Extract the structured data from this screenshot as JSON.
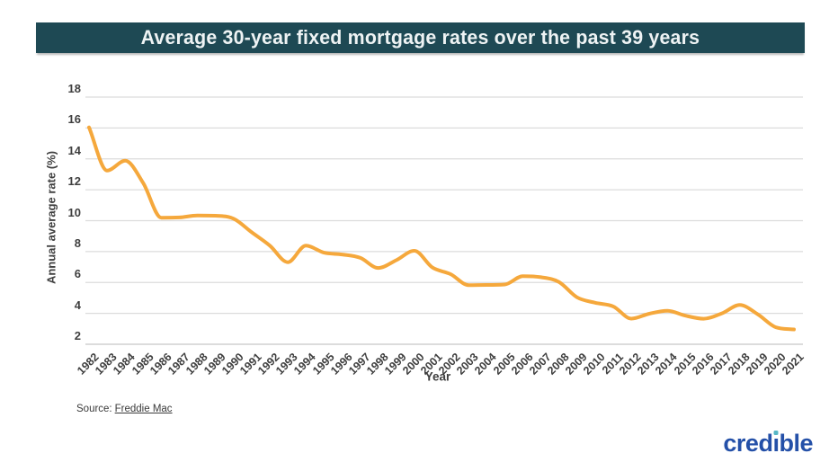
{
  "header": {
    "title": "Average 30-year fixed mortgage rates over the past 39 years",
    "bg_color": "#1e4954"
  },
  "chart_data": {
    "type": "line",
    "title": "Average 30-year fixed mortgage rates over the past 39 years",
    "xlabel": "Year",
    "ylabel": "Annual average rate (%)",
    "categories": [
      "1982",
      "1983",
      "1984",
      "1985",
      "1986",
      "1987",
      "1988",
      "1989",
      "1990",
      "1991",
      "1992",
      "1993",
      "1994",
      "1995",
      "1996",
      "1997",
      "1998",
      "1999",
      "2000",
      "2001",
      "2002",
      "2003",
      "2004",
      "2005",
      "2006",
      "2007",
      "2008",
      "2009",
      "2010",
      "2011",
      "2012",
      "2013",
      "2014",
      "2015",
      "2016",
      "2017",
      "2018",
      "2019",
      "2020",
      "2021"
    ],
    "values": [
      16.04,
      13.24,
      13.88,
      12.43,
      10.19,
      10.21,
      10.34,
      10.32,
      10.13,
      9.25,
      8.39,
      7.31,
      8.38,
      7.93,
      7.81,
      7.6,
      6.94,
      7.44,
      8.05,
      6.97,
      6.54,
      5.83,
      5.84,
      5.87,
      6.41,
      6.34,
      6.03,
      5.04,
      4.69,
      4.45,
      3.66,
      3.98,
      4.17,
      3.85,
      3.65,
      3.99,
      4.54,
      3.94,
      3.1,
      2.96
    ],
    "yticks": [
      2,
      4,
      6,
      8,
      10,
      12,
      14,
      16,
      18
    ],
    "ylim": [
      2,
      18
    ],
    "grid": "horizontal",
    "legend": "none",
    "smooth": true,
    "line_color": "#f5a83c",
    "grid_color": "#dcdcdc",
    "axis_line_color": "#c8c8c8"
  },
  "footer": {
    "source_prefix": "Source:",
    "source_link": "Freddie Mac",
    "logo_text": "credible",
    "logo_color": "#2450a8",
    "logo_dot_color": "#56b7c6"
  }
}
